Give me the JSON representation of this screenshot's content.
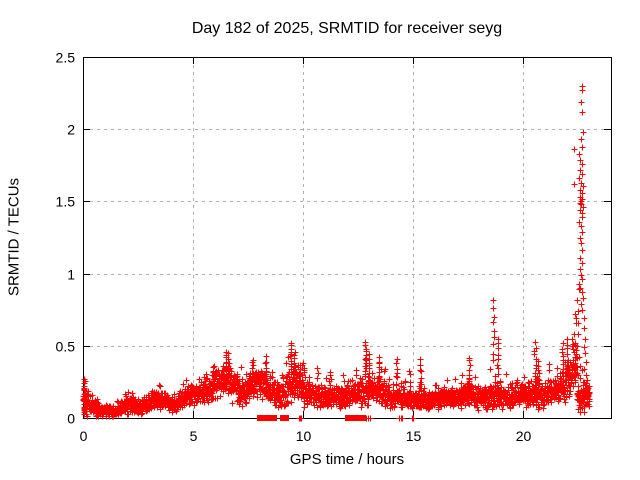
{
  "chart_data": {
    "type": "scatter",
    "title": "Day 182 of 2025, SRMTID for receiver seyg",
    "xlabel": "GPS time / hours",
    "ylabel": "SRMTID / TECUs",
    "xlim": [
      0,
      24
    ],
    "ylim": [
      0,
      2.5
    ],
    "xticks": [
      0,
      5,
      10,
      15,
      20
    ],
    "yticks": [
      0,
      0.5,
      1,
      1.5,
      2,
      2.5
    ],
    "grid": true,
    "legend_position": "none",
    "marker": "plus",
    "marker_color": "#ff0000",
    "series_name": "SRMTID",
    "sample_interval_hours": 0.008333,
    "y_max_observed": 2.3,
    "t_of_max_hours": 22.7,
    "noise_bands_format": "[t_start_h, t_end_h, y_center_TECU, y_halfspread_TECU]",
    "noise_bands": [
      [
        0.0,
        0.25,
        0.13,
        0.1
      ],
      [
        0.25,
        0.7,
        0.07,
        0.045
      ],
      [
        0.7,
        1.1,
        0.055,
        0.035
      ],
      [
        1.1,
        1.5,
        0.05,
        0.03
      ],
      [
        1.5,
        1.9,
        0.07,
        0.04
      ],
      [
        1.9,
        2.3,
        0.09,
        0.05
      ],
      [
        2.3,
        2.7,
        0.08,
        0.045
      ],
      [
        2.7,
        3.1,
        0.1,
        0.05
      ],
      [
        3.1,
        3.5,
        0.13,
        0.055
      ],
      [
        3.5,
        3.9,
        0.12,
        0.05
      ],
      [
        3.9,
        4.3,
        0.1,
        0.05
      ],
      [
        4.3,
        4.7,
        0.14,
        0.055
      ],
      [
        4.7,
        5.1,
        0.16,
        0.06
      ],
      [
        5.1,
        5.5,
        0.17,
        0.065
      ],
      [
        5.5,
        5.9,
        0.2,
        0.075
      ],
      [
        5.9,
        6.3,
        0.23,
        0.085
      ],
      [
        6.3,
        6.7,
        0.26,
        0.1
      ],
      [
        6.7,
        7.1,
        0.21,
        0.085
      ],
      [
        7.1,
        7.5,
        0.18,
        0.08
      ],
      [
        7.5,
        7.9,
        0.24,
        0.095
      ],
      [
        7.9,
        8.3,
        0.23,
        0.095
      ],
      [
        8.3,
        8.7,
        0.19,
        0.09
      ],
      [
        8.7,
        9.1,
        0.16,
        0.08
      ],
      [
        9.1,
        9.5,
        0.21,
        0.1
      ],
      [
        9.5,
        9.9,
        0.24,
        0.11
      ],
      [
        9.9,
        10.3,
        0.2,
        0.095
      ],
      [
        10.3,
        10.7,
        0.17,
        0.08
      ],
      [
        10.7,
        11.1,
        0.15,
        0.07
      ],
      [
        11.1,
        11.5,
        0.14,
        0.065
      ],
      [
        11.5,
        11.9,
        0.15,
        0.07
      ],
      [
        11.9,
        12.3,
        0.17,
        0.08
      ],
      [
        12.3,
        12.7,
        0.18,
        0.085
      ],
      [
        12.7,
        13.1,
        0.21,
        0.1
      ],
      [
        13.1,
        13.5,
        0.2,
        0.095
      ],
      [
        13.5,
        13.9,
        0.17,
        0.085
      ],
      [
        13.9,
        14.3,
        0.14,
        0.07
      ],
      [
        14.3,
        14.7,
        0.13,
        0.065
      ],
      [
        14.7,
        15.1,
        0.13,
        0.06
      ],
      [
        15.1,
        15.5,
        0.14,
        0.065
      ],
      [
        15.5,
        15.9,
        0.12,
        0.055
      ],
      [
        15.9,
        16.3,
        0.12,
        0.055
      ],
      [
        16.3,
        16.7,
        0.14,
        0.06
      ],
      [
        16.7,
        17.1,
        0.15,
        0.065
      ],
      [
        17.1,
        17.5,
        0.16,
        0.075
      ],
      [
        17.5,
        17.9,
        0.15,
        0.075
      ],
      [
        17.9,
        18.3,
        0.14,
        0.07
      ],
      [
        18.3,
        18.7,
        0.16,
        0.085
      ],
      [
        18.7,
        19.1,
        0.17,
        0.085
      ],
      [
        19.1,
        19.5,
        0.15,
        0.075
      ],
      [
        19.5,
        19.9,
        0.16,
        0.075
      ],
      [
        19.9,
        20.3,
        0.17,
        0.08
      ],
      [
        20.3,
        20.7,
        0.16,
        0.08
      ],
      [
        20.7,
        21.1,
        0.16,
        0.08
      ],
      [
        21.1,
        21.5,
        0.18,
        0.09
      ],
      [
        21.5,
        21.9,
        0.21,
        0.1
      ],
      [
        21.9,
        22.2,
        0.26,
        0.12
      ],
      [
        22.2,
        22.45,
        0.38,
        0.18
      ],
      [
        22.45,
        23.0,
        0.15,
        0.09
      ]
    ],
    "spike_clusters_format": "[t_h, y_low_TECU, y_high_TECU, n_points]",
    "spike_clusters": [
      [
        0.04,
        0.02,
        0.26,
        14
      ],
      [
        5.9,
        0.25,
        0.35,
        6
      ],
      [
        6.5,
        0.28,
        0.46,
        10
      ],
      [
        6.6,
        0.26,
        0.4,
        7
      ],
      [
        7.7,
        0.28,
        0.4,
        7
      ],
      [
        8.3,
        0.25,
        0.42,
        8
      ],
      [
        9.45,
        0.3,
        0.52,
        12
      ],
      [
        9.6,
        0.26,
        0.44,
        8
      ],
      [
        10.0,
        0.24,
        0.38,
        6
      ],
      [
        11.2,
        0.2,
        0.32,
        5
      ],
      [
        12.85,
        0.3,
        0.52,
        12
      ],
      [
        13.0,
        0.26,
        0.44,
        8
      ],
      [
        13.45,
        0.24,
        0.42,
        8
      ],
      [
        14.25,
        0.22,
        0.4,
        8
      ],
      [
        14.85,
        0.18,
        0.33,
        5
      ],
      [
        15.35,
        0.2,
        0.4,
        8
      ],
      [
        17.55,
        0.22,
        0.42,
        8
      ],
      [
        18.65,
        0.4,
        0.81,
        9
      ],
      [
        18.85,
        0.3,
        0.55,
        8
      ],
      [
        20.55,
        0.26,
        0.52,
        10
      ],
      [
        20.7,
        0.24,
        0.4,
        6
      ],
      [
        21.8,
        0.28,
        0.52,
        9
      ],
      [
        22.0,
        0.3,
        0.55,
        8
      ]
    ],
    "zero_value_runs_format": "[t_start_h, t_end_h] solid blocks at y=0",
    "zero_value_runs": [
      [
        8.03,
        8.47
      ],
      [
        8.55,
        8.72
      ],
      [
        9.1,
        9.27
      ],
      [
        12.05,
        12.28
      ],
      [
        12.33,
        12.52
      ],
      [
        12.58,
        12.73
      ]
    ],
    "zero_value_points": [
      9.8,
      9.87,
      9.93,
      12.88,
      12.95,
      13.05,
      14.35,
      14.45,
      14.52,
      14.95,
      15.02
    ],
    "surge_points_format": "[t_h, y_TECU] explicit points of the late spike",
    "surge_points": [
      [
        22.66,
        2.3
      ],
      [
        22.7,
        2.27
      ],
      [
        22.64,
        2.19
      ],
      [
        22.68,
        2.12
      ],
      [
        22.71,
        1.98
      ],
      [
        22.62,
        1.93
      ],
      [
        22.67,
        1.88
      ],
      [
        22.55,
        1.83
      ],
      [
        22.6,
        1.79
      ],
      [
        22.66,
        1.76
      ],
      [
        22.58,
        1.72
      ],
      [
        22.7,
        1.69
      ],
      [
        22.56,
        1.66
      ],
      [
        22.63,
        1.63
      ],
      [
        22.72,
        1.61
      ],
      [
        22.59,
        1.58
      ],
      [
        22.66,
        1.56
      ],
      [
        22.61,
        1.53
      ],
      [
        22.68,
        1.52
      ],
      [
        22.64,
        1.5
      ],
      [
        22.57,
        1.49
      ],
      [
        22.65,
        1.48
      ],
      [
        22.71,
        1.46
      ],
      [
        22.6,
        1.44
      ],
      [
        22.66,
        1.42
      ],
      [
        22.69,
        1.39
      ],
      [
        22.55,
        1.36
      ],
      [
        22.62,
        1.33
      ],
      [
        22.67,
        1.29
      ],
      [
        22.59,
        1.25
      ],
      [
        22.64,
        1.21
      ],
      [
        22.69,
        1.16
      ],
      [
        22.61,
        1.11
      ],
      [
        22.66,
        1.07
      ],
      [
        22.57,
        1.03
      ],
      [
        22.63,
        0.99
      ],
      [
        22.7,
        0.96
      ],
      [
        22.54,
        0.93
      ],
      [
        22.6,
        0.9
      ],
      [
        22.67,
        0.87
      ],
      [
        22.73,
        0.83
      ],
      [
        22.63,
        0.79
      ],
      [
        22.69,
        0.75
      ],
      [
        22.75,
        0.69
      ],
      [
        22.78,
        0.62
      ],
      [
        22.8,
        0.55
      ],
      [
        22.76,
        0.49
      ],
      [
        22.82,
        0.45
      ],
      [
        22.85,
        0.39
      ],
      [
        22.79,
        0.34
      ],
      [
        22.87,
        0.3
      ],
      [
        22.9,
        0.26
      ],
      [
        22.84,
        0.23
      ],
      [
        22.93,
        0.2
      ],
      [
        22.96,
        0.17
      ],
      [
        22.91,
        0.14
      ],
      [
        22.99,
        0.12
      ],
      [
        22.33,
        1.86
      ],
      [
        22.3,
        1.62
      ],
      [
        22.36,
        0.72
      ],
      [
        22.4,
        0.66
      ],
      [
        22.34,
        0.58
      ],
      [
        22.38,
        0.52
      ],
      [
        22.31,
        0.46
      ],
      [
        22.42,
        0.44
      ],
      [
        22.26,
        0.4
      ],
      [
        22.45,
        0.5
      ],
      [
        22.48,
        0.58
      ],
      [
        22.5,
        0.66
      ],
      [
        22.52,
        0.74
      ],
      [
        22.47,
        0.82
      ],
      [
        22.53,
        0.89
      ],
      [
        22.44,
        0.35
      ],
      [
        22.49,
        0.3
      ],
      [
        22.55,
        0.42
      ],
      [
        22.58,
        0.36
      ],
      [
        22.21,
        0.33
      ],
      [
        22.24,
        0.28
      ],
      [
        22.17,
        0.25
      ],
      [
        22.12,
        0.3
      ],
      [
        22.08,
        0.22
      ],
      [
        22.15,
        0.19
      ],
      [
        22.28,
        0.22
      ],
      [
        22.35,
        0.25
      ],
      [
        22.5,
        0.22
      ],
      [
        22.6,
        0.28
      ],
      [
        22.7,
        0.33
      ],
      [
        22.75,
        0.25
      ],
      [
        22.8,
        0.2
      ],
      [
        22.88,
        0.16
      ],
      [
        22.95,
        0.1
      ],
      [
        23.0,
        0.13
      ],
      [
        23.02,
        0.22
      ]
    ]
  },
  "style": {
    "background": "#ffffff",
    "text_color": "#000000",
    "axis_color": "#000000",
    "grid_color": "#b0b0b0",
    "point_color": "#ff0000"
  }
}
